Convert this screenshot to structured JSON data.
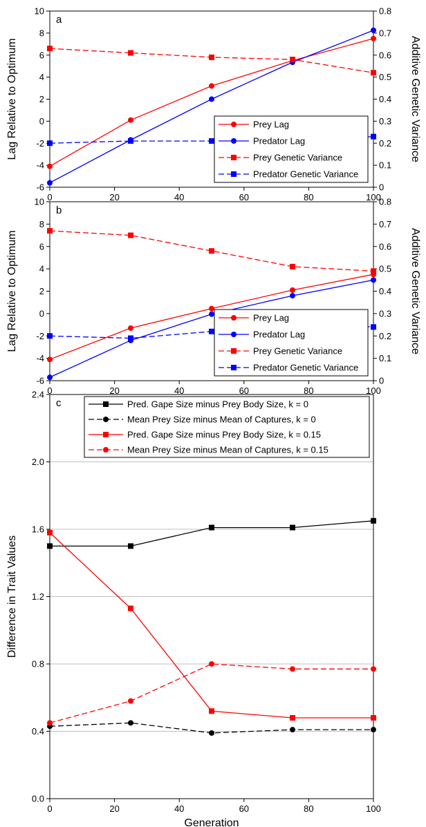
{
  "chart_data": [
    {
      "panel": "a",
      "type": "line",
      "x": [
        0,
        25,
        50,
        75,
        100
      ],
      "xlim": [
        0,
        100
      ],
      "xticks": [
        0,
        20,
        40,
        60,
        80,
        100
      ],
      "ylabel": "Lag Relative to Optimum",
      "ylim": [
        -6,
        10
      ],
      "yticks": [
        -6,
        -4,
        -2,
        0,
        2,
        4,
        6,
        8,
        10
      ],
      "y2label": "Additive Genetic Variance",
      "y2lim": [
        0,
        0.8
      ],
      "y2ticks": [
        "0",
        "0.1",
        "0.2",
        "0.3",
        "0.4",
        "0.5",
        "0.6",
        "0.7",
        "0.8"
      ],
      "grid": false,
      "legend": "bottom-right",
      "series": [
        {
          "name": "Prey Lag",
          "axis": "left",
          "color": "#ff0000",
          "dash": "solid",
          "marker": "circle",
          "values": [
            -4.1,
            0.1,
            3.2,
            5.5,
            7.5
          ]
        },
        {
          "name": "Predator Lag",
          "axis": "left",
          "color": "#0000ff",
          "dash": "solid",
          "marker": "circle",
          "values": [
            -5.6,
            -1.7,
            2.0,
            5.35,
            8.25
          ]
        },
        {
          "name": "Prey Genetic Variance",
          "axis": "right",
          "color": "#ff0000",
          "dash": "dashed",
          "marker": "square",
          "values": [
            0.63,
            0.61,
            0.59,
            0.58,
            0.52
          ]
        },
        {
          "name": "Predator Genetic Variance",
          "axis": "right",
          "color": "#0000ff",
          "dash": "dashed",
          "marker": "square",
          "values": [
            0.2,
            0.21,
            0.21,
            0.21,
            0.23
          ]
        }
      ]
    },
    {
      "panel": "b",
      "type": "line",
      "x": [
        0,
        25,
        50,
        75,
        100
      ],
      "xlim": [
        0,
        100
      ],
      "xticks": [
        0,
        20,
        40,
        60,
        80,
        100
      ],
      "ylabel": "Lag Relative to Optimum",
      "ylim": [
        -6,
        10
      ],
      "yticks": [
        -6,
        -4,
        -2,
        0,
        2,
        4,
        6,
        8,
        10
      ],
      "y2label": "Additive Genetic Variance",
      "y2lim": [
        0,
        0.8
      ],
      "y2ticks": [
        "0",
        "0.1",
        "0.2",
        "0.3",
        "0.4",
        "0.5",
        "0.6",
        "0.7",
        "0.8"
      ],
      "grid": false,
      "legend": "bottom-right",
      "series": [
        {
          "name": "Prey Lag",
          "axis": "left",
          "color": "#ff0000",
          "dash": "solid",
          "marker": "circle",
          "values": [
            -4.1,
            -1.3,
            0.45,
            2.1,
            3.5
          ]
        },
        {
          "name": "Predator Lag",
          "axis": "left",
          "color": "#0000ff",
          "dash": "solid",
          "marker": "circle",
          "values": [
            -5.7,
            -2.4,
            -0.05,
            1.6,
            3.0
          ]
        },
        {
          "name": "Prey Genetic Variance",
          "axis": "right",
          "color": "#ff0000",
          "dash": "dashed",
          "marker": "square",
          "values": [
            0.67,
            0.65,
            0.58,
            0.51,
            0.49
          ]
        },
        {
          "name": "Predator Genetic Variance",
          "axis": "right",
          "color": "#0000ff",
          "dash": "dashed",
          "marker": "square",
          "values": [
            0.2,
            0.19,
            0.22,
            0.26,
            0.24
          ]
        }
      ]
    },
    {
      "panel": "c",
      "type": "line",
      "x": [
        0,
        25,
        50,
        75,
        100
      ],
      "xlim": [
        0,
        100
      ],
      "xticks": [
        0,
        20,
        40,
        60,
        80,
        100
      ],
      "xlabel": "Generation",
      "ylabel": "Difference in Trait Values",
      "ylim": [
        0,
        2.4
      ],
      "yticks": [
        "0.0",
        "0.4",
        "0.8",
        "1.2",
        "1.6",
        "2.0",
        "2.4"
      ],
      "grid": true,
      "legend": "top-right",
      "series": [
        {
          "name": "Pred. Gape Size minus Prey Body Size, k = 0",
          "color": "#000000",
          "dash": "solid",
          "marker": "square",
          "values": [
            1.5,
            1.5,
            1.61,
            1.61,
            1.65
          ]
        },
        {
          "name": "Mean Prey Size minus Mean of Captures, k = 0",
          "color": "#000000",
          "dash": "dashed",
          "marker": "circle",
          "values": [
            0.43,
            0.45,
            0.39,
            0.41,
            0.41
          ]
        },
        {
          "name": "Pred. Gape Size minus Prey Body Size, k = 0.15",
          "color": "#ff0000",
          "dash": "solid",
          "marker": "square",
          "values": [
            1.58,
            1.13,
            0.52,
            0.48,
            0.48
          ]
        },
        {
          "name": "Mean Prey Size minus Mean of Captures, k = 0.15",
          "color": "#ff0000",
          "dash": "dashed",
          "marker": "circle",
          "values": [
            0.45,
            0.58,
            0.8,
            0.77,
            0.77
          ]
        }
      ]
    }
  ]
}
